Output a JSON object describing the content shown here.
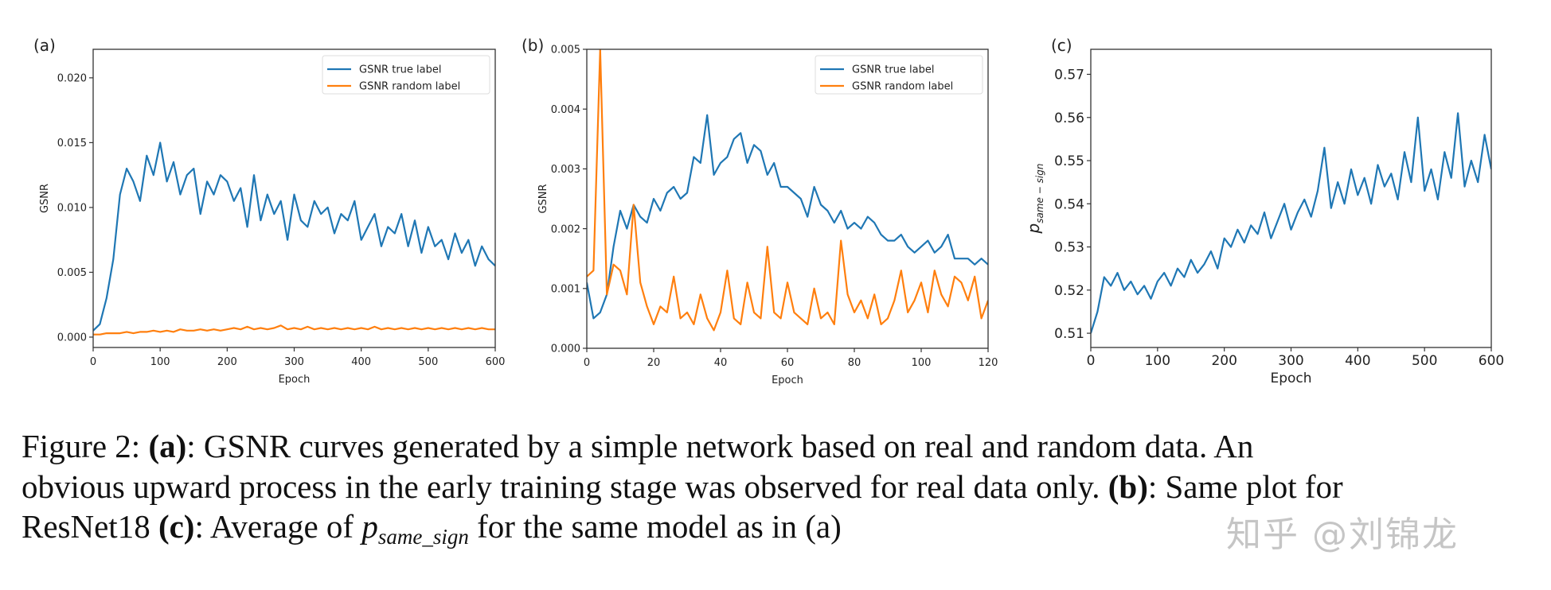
{
  "chart_data": [
    {
      "type": "line",
      "panel_label": "(a)",
      "xlabel": "Epoch",
      "ylabel": "GSNR",
      "xlim": [
        0,
        600
      ],
      "ylim": [
        -0.0008,
        0.0222
      ],
      "xticks": [
        0,
        100,
        200,
        300,
        400,
        500,
        600
      ],
      "xtick_labels": [
        "0",
        "100",
        "200",
        "300",
        "400",
        "500",
        "600"
      ],
      "yticks": [
        0.0,
        0.005,
        0.01,
        0.015,
        0.02
      ],
      "ytick_labels": [
        "0.000",
        "0.005",
        "0.010",
        "0.015",
        "0.020"
      ],
      "grid": false,
      "legend": "top-right",
      "x": [
        0,
        10,
        20,
        30,
        40,
        50,
        60,
        70,
        80,
        90,
        100,
        110,
        120,
        130,
        140,
        150,
        160,
        170,
        180,
        190,
        200,
        210,
        220,
        230,
        240,
        250,
        260,
        270,
        280,
        290,
        300,
        310,
        320,
        330,
        340,
        350,
        360,
        370,
        380,
        390,
        400,
        410,
        420,
        430,
        440,
        450,
        460,
        470,
        480,
        490,
        500,
        510,
        520,
        530,
        540,
        550,
        560,
        570,
        580,
        590,
        600
      ],
      "series": [
        {
          "name": "GSNR true label",
          "color": "#1f77b4",
          "values": [
            0.0005,
            0.001,
            0.003,
            0.006,
            0.011,
            0.013,
            0.012,
            0.0105,
            0.014,
            0.0125,
            0.015,
            0.012,
            0.0135,
            0.011,
            0.0125,
            0.013,
            0.0095,
            0.012,
            0.011,
            0.0125,
            0.012,
            0.0105,
            0.0115,
            0.0085,
            0.0125,
            0.009,
            0.011,
            0.0095,
            0.0105,
            0.0075,
            0.011,
            0.009,
            0.0085,
            0.0105,
            0.0095,
            0.01,
            0.008,
            0.0095,
            0.009,
            0.0105,
            0.0075,
            0.0085,
            0.0095,
            0.007,
            0.0085,
            0.008,
            0.0095,
            0.007,
            0.009,
            0.0065,
            0.0085,
            0.007,
            0.0075,
            0.006,
            0.008,
            0.0065,
            0.0075,
            0.0055,
            0.007,
            0.006,
            0.0055
          ]
        },
        {
          "name": "GSNR random label",
          "color": "#ff7f0e",
          "values": [
            0.0002,
            0.0002,
            0.0003,
            0.0003,
            0.0003,
            0.0004,
            0.0003,
            0.0004,
            0.0004,
            0.0005,
            0.0004,
            0.0005,
            0.0004,
            0.0006,
            0.0005,
            0.0005,
            0.0006,
            0.0005,
            0.0006,
            0.0005,
            0.0006,
            0.0007,
            0.0006,
            0.0008,
            0.0006,
            0.0007,
            0.0006,
            0.0007,
            0.0009,
            0.0006,
            0.0007,
            0.0006,
            0.0008,
            0.0006,
            0.0007,
            0.0006,
            0.0007,
            0.0006,
            0.0007,
            0.0006,
            0.0007,
            0.0006,
            0.0008,
            0.0006,
            0.0007,
            0.0006,
            0.0007,
            0.0006,
            0.0007,
            0.0006,
            0.0007,
            0.0006,
            0.0007,
            0.0006,
            0.0007,
            0.0006,
            0.0007,
            0.0006,
            0.0007,
            0.0006,
            0.0006
          ]
        }
      ]
    },
    {
      "type": "line",
      "panel_label": "(b)",
      "xlabel": "Epoch",
      "ylabel": "GSNR",
      "xlim": [
        0,
        120
      ],
      "ylim": [
        0.0,
        0.005
      ],
      "xticks": [
        0,
        20,
        40,
        60,
        80,
        100,
        120
      ],
      "xtick_labels": [
        "0",
        "20",
        "40",
        "60",
        "80",
        "100",
        "120"
      ],
      "yticks": [
        0.0,
        0.001,
        0.002,
        0.003,
        0.004,
        0.005
      ],
      "ytick_labels": [
        "0.000",
        "0.001",
        "0.002",
        "0.003",
        "0.004",
        "0.005"
      ],
      "grid": false,
      "legend": "top-right",
      "x": [
        0,
        2,
        4,
        6,
        8,
        10,
        12,
        14,
        16,
        18,
        20,
        22,
        24,
        26,
        28,
        30,
        32,
        34,
        36,
        38,
        40,
        42,
        44,
        46,
        48,
        50,
        52,
        54,
        56,
        58,
        60,
        62,
        64,
        66,
        68,
        70,
        72,
        74,
        76,
        78,
        80,
        82,
        84,
        86,
        88,
        90,
        92,
        94,
        96,
        98,
        100,
        102,
        104,
        106,
        108,
        110,
        112,
        114,
        116,
        118,
        120
      ],
      "series": [
        {
          "name": "GSNR true label",
          "color": "#1f77b4",
          "values": [
            0.0011,
            0.0005,
            0.0006,
            0.0009,
            0.0017,
            0.0023,
            0.002,
            0.0024,
            0.0022,
            0.0021,
            0.0025,
            0.0023,
            0.0026,
            0.0027,
            0.0025,
            0.0026,
            0.0032,
            0.0031,
            0.0039,
            0.0029,
            0.0031,
            0.0032,
            0.0035,
            0.0036,
            0.0031,
            0.0034,
            0.0033,
            0.0029,
            0.0031,
            0.0027,
            0.0027,
            0.0026,
            0.0025,
            0.0022,
            0.0027,
            0.0024,
            0.0023,
            0.0021,
            0.0023,
            0.002,
            0.0021,
            0.002,
            0.0022,
            0.0021,
            0.0019,
            0.0018,
            0.0018,
            0.0019,
            0.0017,
            0.0016,
            0.0017,
            0.0018,
            0.0016,
            0.0017,
            0.0019,
            0.0015,
            0.0015,
            0.0015,
            0.0014,
            0.0015,
            0.0014
          ]
        },
        {
          "name": "GSNR random label",
          "color": "#ff7f0e",
          "values": [
            0.0012,
            0.0013,
            0.005,
            0.0009,
            0.0014,
            0.0013,
            0.0009,
            0.0024,
            0.0011,
            0.0007,
            0.0004,
            0.0007,
            0.0006,
            0.0012,
            0.0005,
            0.0006,
            0.0004,
            0.0009,
            0.0005,
            0.0003,
            0.0006,
            0.0013,
            0.0005,
            0.0004,
            0.0011,
            0.0006,
            0.0005,
            0.0017,
            0.0006,
            0.0005,
            0.0011,
            0.0006,
            0.0005,
            0.0004,
            0.001,
            0.0005,
            0.0006,
            0.0004,
            0.0018,
            0.0009,
            0.0006,
            0.0008,
            0.0005,
            0.0009,
            0.0004,
            0.0005,
            0.0008,
            0.0013,
            0.0006,
            0.0008,
            0.0011,
            0.0006,
            0.0013,
            0.0009,
            0.0007,
            0.0012,
            0.0011,
            0.0008,
            0.0012,
            0.0005,
            0.0008
          ]
        }
      ]
    },
    {
      "type": "line",
      "panel_label": "(c)",
      "xlabel": "Epoch",
      "ylabel": "p_same-sign",
      "ylabel_main": "p",
      "ylabel_sub": "same − sign",
      "xlim": [
        0,
        600
      ],
      "ylim": [
        0.5067,
        0.5758
      ],
      "xticks": [
        0,
        100,
        200,
        300,
        400,
        500,
        600
      ],
      "xtick_labels": [
        "0",
        "100",
        "200",
        "300",
        "400",
        "500",
        "600"
      ],
      "yticks": [
        0.51,
        0.52,
        0.53,
        0.54,
        0.55,
        0.56,
        0.57
      ],
      "ytick_labels": [
        "0.51",
        "0.52",
        "0.53",
        "0.54",
        "0.55",
        "0.56",
        "0.57"
      ],
      "grid": false,
      "x": [
        0,
        10,
        20,
        30,
        40,
        50,
        60,
        70,
        80,
        90,
        100,
        110,
        120,
        130,
        140,
        150,
        160,
        170,
        180,
        190,
        200,
        210,
        220,
        230,
        240,
        250,
        260,
        270,
        280,
        290,
        300,
        310,
        320,
        330,
        340,
        350,
        360,
        370,
        380,
        390,
        400,
        410,
        420,
        430,
        440,
        450,
        460,
        470,
        480,
        490,
        500,
        510,
        520,
        530,
        540,
        550,
        560,
        570,
        580,
        590,
        600
      ],
      "series": [
        {
          "color": "#1f77b4",
          "values": [
            0.51,
            0.515,
            0.523,
            0.521,
            0.524,
            0.52,
            0.522,
            0.519,
            0.521,
            0.518,
            0.522,
            0.524,
            0.521,
            0.525,
            0.523,
            0.527,
            0.524,
            0.526,
            0.529,
            0.525,
            0.532,
            0.53,
            0.534,
            0.531,
            0.535,
            0.533,
            0.538,
            0.532,
            0.536,
            0.54,
            0.534,
            0.538,
            0.541,
            0.537,
            0.543,
            0.553,
            0.539,
            0.545,
            0.54,
            0.548,
            0.542,
            0.546,
            0.54,
            0.549,
            0.544,
            0.547,
            0.541,
            0.552,
            0.545,
            0.56,
            0.543,
            0.548,
            0.541,
            0.552,
            0.546,
            0.561,
            0.544,
            0.55,
            0.545,
            0.556,
            0.548
          ]
        }
      ]
    }
  ],
  "caption": {
    "fig": "Figure 2: ",
    "a_label": "(a)",
    "a_text": ": GSNR curves generated by a simple network based on real and random data.  An",
    "line2": "obvious upward process in the early training stage was observed for real data only. ",
    "b_label": "(b)",
    "b_text": ": Same plot for",
    "line3_start": "ResNet18 ",
    "c_label": "(c)",
    "c_text": ": Average of ",
    "p": "p",
    "p_sub": "same_sign",
    "c_end": " for the same model as in (a)"
  },
  "watermark": "知乎 @刘锦龙"
}
